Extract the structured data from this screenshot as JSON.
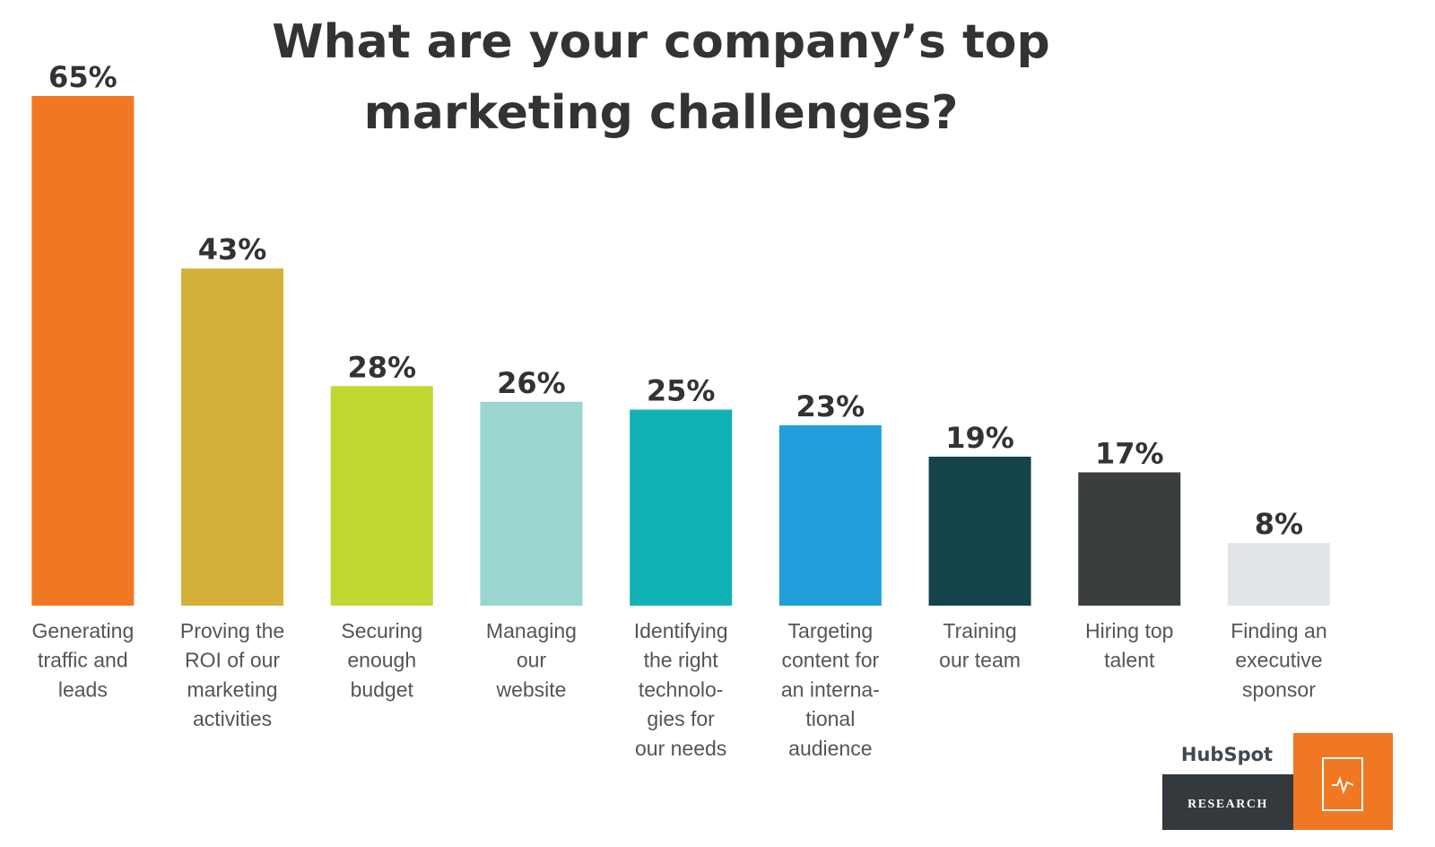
{
  "chart_data": {
    "type": "bar",
    "title": [
      "What are your company’s top",
      "marketing challenges?"
    ],
    "categories": [
      [
        "Generating",
        "traffic and",
        "leads"
      ],
      [
        "Proving the",
        "ROI of our",
        "marketing",
        "activities"
      ],
      [
        "Securing",
        "enough",
        "budget"
      ],
      [
        "Managing",
        "our",
        "website"
      ],
      [
        "Identifying",
        "the right",
        "technolo-",
        "gies for",
        "our needs"
      ],
      [
        "Targeting",
        "content for",
        "an interna-",
        "tional",
        "audience"
      ],
      [
        "Training",
        "our team"
      ],
      [
        "Hiring top",
        "talent"
      ],
      [
        "Finding an",
        "executive",
        "sponsor"
      ]
    ],
    "values": [
      65,
      43,
      28,
      26,
      25,
      23,
      19,
      17,
      8
    ],
    "value_labels": [
      "65%",
      "43%",
      "28%",
      "26%",
      "25%",
      "23%",
      "19%",
      "17%",
      "8%"
    ],
    "colors": [
      "#f07822",
      "#d4b03a",
      "#c0d732",
      "#9ad5cf",
      "#10b2b5",
      "#229fdb",
      "#15434c",
      "#3a3f3d",
      "#e2e5e8"
    ],
    "ylim": [
      0,
      65
    ],
    "brand": "HubSpot",
    "badge": "RESEARCH"
  }
}
